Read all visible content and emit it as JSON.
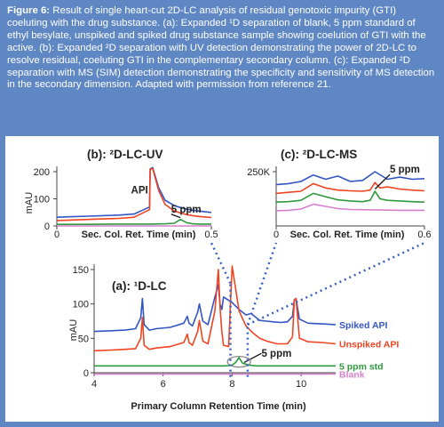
{
  "caption": {
    "label": "Figure 6:",
    "text": "Result of single heart-cut 2D-LC analysis of residual genotoxic impurity (GTI) coeluting with the drug substance. (a): Expanded ¹D separation of blank, 5 ppm standard of ethyl besylate, unspiked and spiked drug substance sample showing coelution of GTI with the active. (b): Expanded ²D separation with UV detection demonstrating the power of 2D-LC to resolve residual, coeluting GTI in the complementary secondary column. (c): Expanded ²D separation with MS (SIM) detection demonstrating the specificity and sensitivity of MS detection in the secondary dimension. Adapted with permission from reference 21."
  },
  "colors": {
    "frame": "#5f87c3",
    "spiked": "#3355c4",
    "unspiked": "#ef4422",
    "std": "#2e9a3e",
    "blank": "#d77fcf",
    "dots": "#3a5fc0"
  },
  "chart_data": [
    {
      "type": "line",
      "panel": "b",
      "title": "(b): ²D-LC-UV",
      "xlabel": "Sec. Col. Ret. Time (min)",
      "ylabel": "mAU",
      "xlim": [
        0,
        0.5
      ],
      "ylim": [
        0,
        200
      ],
      "xticks": [
        "0",
        "0.5"
      ],
      "yticks": [
        "0",
        "100",
        "200"
      ],
      "annotations": [
        "API",
        "5 ppm"
      ],
      "series": [
        {
          "key": "spiked",
          "x": [
            0,
            0.05,
            0.1,
            0.15,
            0.2,
            0.25,
            0.3,
            0.302,
            0.31,
            0.33,
            0.35,
            0.38,
            0.4,
            0.42,
            0.44,
            0.46,
            0.48,
            0.5
          ],
          "y": [
            32,
            34,
            36,
            38,
            40,
            44,
            70,
            210,
            215,
            140,
            95,
            75,
            68,
            62,
            58,
            55,
            52,
            50
          ]
        },
        {
          "key": "unspiked",
          "x": [
            0,
            0.05,
            0.1,
            0.15,
            0.2,
            0.25,
            0.3,
            0.302,
            0.31,
            0.33,
            0.35,
            0.38,
            0.4,
            0.42,
            0.44,
            0.46,
            0.48,
            0.5
          ],
          "y": [
            20,
            22,
            24,
            26,
            28,
            32,
            60,
            208,
            212,
            130,
            80,
            55,
            48,
            42,
            38,
            35,
            33,
            31
          ]
        },
        {
          "key": "std",
          "x": [
            0,
            0.1,
            0.2,
            0.3,
            0.35,
            0.38,
            0.4,
            0.42,
            0.44,
            0.46,
            0.5
          ],
          "y": [
            6,
            6,
            7,
            7,
            8,
            10,
            24,
            12,
            8,
            7,
            7
          ]
        },
        {
          "key": "blank",
          "x": [
            0,
            0.1,
            0.2,
            0.3,
            0.4,
            0.5
          ],
          "y": [
            0,
            0,
            0,
            0,
            0,
            0
          ]
        }
      ]
    },
    {
      "type": "line",
      "panel": "c",
      "title": "(c): ²D-LC-MS",
      "xlabel": "Sec. Col. Ret. Time (min)",
      "ylabel": "",
      "xlim": [
        0,
        0.6
      ],
      "ylim": [
        0,
        250000
      ],
      "xticks": [
        "0",
        "0.6"
      ],
      "yticks": [
        "250K"
      ],
      "annotations": [
        "5 ppm"
      ],
      "series": [
        {
          "key": "spiked",
          "x": [
            0,
            0.05,
            0.1,
            0.15,
            0.2,
            0.25,
            0.3,
            0.35,
            0.4,
            0.45,
            0.5,
            0.55,
            0.6
          ],
          "y": [
            190000,
            195000,
            205000,
            235000,
            215000,
            230000,
            205000,
            210000,
            250000,
            215000,
            225000,
            215000,
            218000
          ]
        },
        {
          "key": "unspiked",
          "x": [
            0,
            0.05,
            0.1,
            0.15,
            0.2,
            0.25,
            0.3,
            0.35,
            0.38,
            0.4,
            0.42,
            0.45,
            0.5,
            0.55,
            0.6
          ],
          "y": [
            150000,
            155000,
            160000,
            195000,
            175000,
            165000,
            162000,
            160000,
            165000,
            200000,
            175000,
            180000,
            170000,
            165000,
            162000
          ]
        },
        {
          "key": "std",
          "x": [
            0,
            0.05,
            0.1,
            0.15,
            0.2,
            0.25,
            0.3,
            0.35,
            0.38,
            0.4,
            0.42,
            0.45,
            0.5,
            0.55,
            0.6
          ],
          "y": [
            110000,
            112000,
            118000,
            150000,
            135000,
            120000,
            115000,
            112000,
            118000,
            160000,
            125000,
            118000,
            115000,
            112000,
            110000
          ]
        },
        {
          "key": "blank",
          "x": [
            0,
            0.05,
            0.1,
            0.15,
            0.2,
            0.25,
            0.3,
            0.4,
            0.5,
            0.6
          ],
          "y": [
            70000,
            72000,
            78000,
            100000,
            90000,
            80000,
            76000,
            74000,
            72000,
            72000
          ]
        }
      ]
    },
    {
      "type": "line",
      "panel": "a",
      "title": "(a): ¹D-LC",
      "xlabel": "Primary Column Retention Time (min)",
      "ylabel": "mAU",
      "xlim": [
        4,
        11
      ],
      "ylim": [
        0,
        150
      ],
      "xticks": [
        "4",
        "6",
        "8",
        "10"
      ],
      "yticks": [
        "0",
        "50",
        "100",
        "150"
      ],
      "annotations": [
        "5 ppm"
      ],
      "series": [
        {
          "key": "spiked",
          "name": "Spiked API",
          "x": [
            4,
            4.5,
            4.9,
            5.2,
            5.35,
            5.4,
            5.45,
            5.6,
            5.8,
            6.2,
            6.6,
            6.7,
            6.75,
            6.85,
            7.0,
            7.05,
            7.15,
            7.3,
            7.5,
            7.6,
            7.65,
            7.7,
            7.75,
            8.0,
            8.2,
            8.4,
            8.55,
            8.7,
            8.8,
            9.0,
            9.2,
            9.4,
            9.6,
            9.75,
            9.8,
            9.85,
            9.95,
            10.2,
            10.6,
            11
          ],
          "y": [
            60,
            61,
            62,
            64,
            80,
            108,
            70,
            62,
            64,
            66,
            72,
            82,
            72,
            68,
            88,
            100,
            75,
            70,
            110,
            128,
            100,
            92,
            110,
            102,
            92,
            84,
            86,
            80,
            76,
            75,
            74,
            73,
            74,
            82,
            106,
            108,
            78,
            72,
            71,
            70
          ]
        },
        {
          "key": "unspiked",
          "name": "Unspiked API",
          "x": [
            4,
            4.5,
            4.9,
            5.2,
            5.35,
            5.4,
            5.45,
            5.6,
            5.8,
            6.2,
            6.6,
            6.7,
            6.75,
            6.85,
            7.0,
            7.05,
            7.15,
            7.3,
            7.5,
            7.6,
            7.65,
            7.7,
            7.75,
            7.9,
            8.0,
            8.2,
            8.4,
            8.6,
            8.8,
            9.0,
            9.3,
            9.6,
            9.75,
            9.8,
            9.85,
            9.95,
            10.2,
            10.6,
            11
          ],
          "y": [
            32,
            33,
            34,
            35,
            50,
            80,
            40,
            34,
            36,
            38,
            44,
            56,
            44,
            40,
            60,
            76,
            46,
            42,
            90,
            150,
            95,
            60,
            40,
            38,
            155,
            90,
            68,
            58,
            50,
            46,
            42,
            42,
            52,
            105,
            108,
            50,
            45,
            44,
            42
          ]
        },
        {
          "key": "std",
          "name": "5 ppm std",
          "x": [
            4,
            5,
            6,
            7,
            7.8,
            8.0,
            8.1,
            8.2,
            8.3,
            8.5,
            8.7,
            9,
            10,
            11
          ],
          "y": [
            10,
            10,
            10,
            10,
            10,
            11,
            15,
            22,
            14,
            11,
            10,
            10,
            10,
            10
          ]
        },
        {
          "key": "blank",
          "name": "Blank",
          "x": [
            4,
            5,
            6,
            7,
            8,
            9,
            10,
            11
          ],
          "y": [
            -2,
            -2,
            -2,
            -2,
            -2,
            -2,
            -2,
            -2
          ]
        }
      ]
    }
  ]
}
